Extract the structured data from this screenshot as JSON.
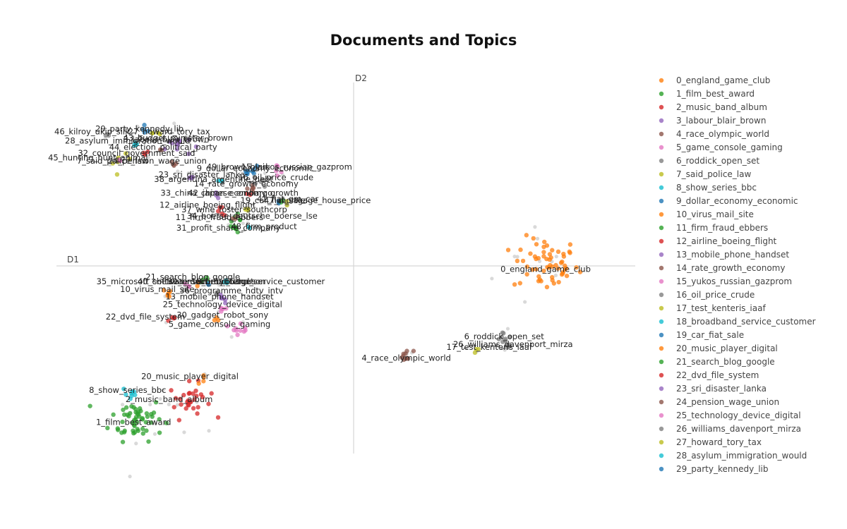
{
  "chart_data": {
    "type": "scatter",
    "title": "Documents and Topics",
    "x_axis_label": "D1",
    "y_axis_label": "D2",
    "grid": false,
    "legend_position": "right",
    "xlim": [
      -10,
      10
    ],
    "ylim": [
      -6,
      6
    ],
    "topics": [
      {
        "label": "0_england_game_club",
        "color": "#ff7f0e",
        "x": 6.5,
        "y": 0.05,
        "spread": 0.55,
        "n": 60,
        "show_label": true
      },
      {
        "label": "1_film_best_award",
        "color": "#2ca02c",
        "x": -7.3,
        "y": -5.0,
        "spread": 0.45,
        "n": 55,
        "show_label": true
      },
      {
        "label": "2_music_band_album",
        "color": "#d62728",
        "x": -5.5,
        "y": -4.4,
        "spread": 0.35,
        "n": 30,
        "show_label": true
      },
      {
        "label": "3_labour_blair_brown",
        "color": "#9467bd",
        "x": -5.9,
        "y": 3.95,
        "spread": 0.22,
        "n": 10,
        "show_label": true
      },
      {
        "label": "4_race_olympic_world",
        "color": "#8c564b",
        "x": 1.8,
        "y": -2.95,
        "spread": 0.12,
        "n": 10,
        "show_label": true
      },
      {
        "label": "5_game_console_gaming",
        "color": "#e377c2",
        "x": -3.8,
        "y": -2.0,
        "spread": 0.15,
        "n": 10,
        "show_label": true
      },
      {
        "label": "6_roddick_open_set",
        "color": "#7f7f7f",
        "x": 5.1,
        "y": -2.35,
        "spread": 0.12,
        "n": 8,
        "show_label": true
      },
      {
        "label": "7_said_police_law",
        "color": "#bcbd22",
        "x": -7.8,
        "y": 3.4,
        "spread": 0.15,
        "n": 6,
        "show_label": true
      },
      {
        "label": "8_show_series_bbc",
        "color": "#17becf",
        "x": -7.5,
        "y": -4.2,
        "spread": 0.15,
        "n": 8,
        "show_label": true
      },
      {
        "label": "9_dollar_economy_economic",
        "color": "#1f77b4",
        "x": -3.5,
        "y": 3.05,
        "spread": 0.12,
        "n": 6,
        "show_label": true
      },
      {
        "label": "10_virus_mail_site",
        "color": "#ff7f0e",
        "x": -6.2,
        "y": -0.9,
        "spread": 0.1,
        "n": 6,
        "show_label": true
      },
      {
        "label": "11_firm_fraud_ebbers",
        "color": "#2ca02c",
        "x": -4.0,
        "y": 1.5,
        "spread": 0.12,
        "n": 8,
        "show_label": true
      },
      {
        "label": "12_airline_boeing_flight",
        "color": "#d62728",
        "x": -4.4,
        "y": 1.8,
        "spread": 0.1,
        "n": 5,
        "show_label": true
      },
      {
        "label": "13_mobile_phone_handset",
        "color": "#9467bd",
        "x": -4.4,
        "y": -1.1,
        "spread": 0.1,
        "n": 6,
        "show_label": true
      },
      {
        "label": "14_rate_growth_economy",
        "color": "#8c564b",
        "x": -3.4,
        "y": 2.55,
        "spread": 0.1,
        "n": 6,
        "show_label": true
      },
      {
        "label": "15_yukos_russian_gazprom",
        "color": "#e377c2",
        "x": -2.6,
        "y": 3.1,
        "spread": 0.1,
        "n": 5,
        "show_label": true
      },
      {
        "label": "16_oil_price_crude",
        "color": "#7f7f7f",
        "x": -3.2,
        "y": 2.8,
        "spread": 0.1,
        "n": 5,
        "show_label": true
      },
      {
        "label": "17_test_kenteris_iaaf",
        "color": "#bcbd22",
        "x": 4.2,
        "y": -2.75,
        "spread": 0.06,
        "n": 3,
        "show_label": true
      },
      {
        "label": "18_broadband_service_customer",
        "color": "#17becf",
        "x": -4.3,
        "y": -0.6,
        "spread": 0.08,
        "n": 4,
        "show_label": true
      },
      {
        "label": "19_car_fiat_sale",
        "color": "#1f77b4",
        "x": -2.5,
        "y": 2.05,
        "spread": 0.06,
        "n": 3,
        "show_label": true
      },
      {
        "label": "20_music_player_digital",
        "color": "#ff7f0e",
        "x": -5.0,
        "y": -3.7,
        "spread": 0.1,
        "n": 4,
        "show_label": true
      },
      {
        "label": "21_search_blog_google",
        "color": "#2ca02c",
        "x": -5.0,
        "y": -0.45,
        "spread": 0.08,
        "n": 4,
        "show_label": true
      },
      {
        "label": "22_dvd_file_system",
        "color": "#d62728",
        "x": -6.1,
        "y": -1.75,
        "spread": 0.08,
        "n": 4,
        "show_label": true
      },
      {
        "label": "23_sri_disaster_lanka",
        "color": "#9467bd",
        "x": -5.5,
        "y": 2.9,
        "spread": 0.08,
        "n": 4,
        "show_label": true
      },
      {
        "label": "24_pension_wage_union",
        "color": "#8c564b",
        "x": -6.0,
        "y": 3.35,
        "spread": 0.08,
        "n": 4,
        "show_label": true
      },
      {
        "label": "25_technology_device_digital",
        "color": "#e377c2",
        "x": -4.4,
        "y": -1.4,
        "spread": 0.1,
        "n": 5,
        "show_label": true
      },
      {
        "label": "26_williams_davenport_mirza",
        "color": "#7f7f7f",
        "x": 5.2,
        "y": -2.6,
        "spread": 0.08,
        "n": 4,
        "show_label": true
      },
      {
        "label": "27_howard_tory_tax",
        "color": "#bcbd22",
        "x": -6.6,
        "y": 4.35,
        "spread": 0.08,
        "n": 4,
        "show_label": true
      },
      {
        "label": "28_asylum_immigration_would",
        "color": "#17becf",
        "x": -7.3,
        "y": 4.0,
        "spread": 0.08,
        "n": 4,
        "show_label": true
      },
      {
        "label": "29_party_kennedy_lib",
        "color": "#1f77b4",
        "x": -7.0,
        "y": 4.4,
        "spread": 0.08,
        "n": 4,
        "show_label": true
      },
      {
        "label": "30_gadget_robot_sony",
        "color": "#ff7f0e",
        "x": -4.6,
        "y": -1.75,
        "spread": 0.06,
        "n": 3,
        "show_label": true
      },
      {
        "label": "31_profit_share_company",
        "color": "#2ca02c",
        "x": -3.9,
        "y": 1.2,
        "spread": 0.08,
        "n": 4,
        "show_label": true
      },
      {
        "label": "32_council_government_said",
        "color": "#d62728",
        "x": -7.0,
        "y": 3.65,
        "spread": 0.08,
        "n": 3,
        "show_label": true
      },
      {
        "label": "33_china_chinese_embargo",
        "color": "#9467bd",
        "x": -4.6,
        "y": 2.3,
        "spread": 0.06,
        "n": 3,
        "show_label": true
      },
      {
        "label": "34_boerse_deutsche_boerse_lse",
        "color": "#8c564b",
        "x": -4.0,
        "y": 1.55,
        "spread": 0.06,
        "n": 3,
        "show_label": true
      },
      {
        "label": "35_microsoft_software_security",
        "color": "#e377c2",
        "x": -5.6,
        "y": -0.65,
        "spread": 0.06,
        "n": 3,
        "show_label": true
      },
      {
        "label": "36_programme_hdtv_intv",
        "color": "#7f7f7f",
        "x": -4.6,
        "y": -0.9,
        "spread": 0.06,
        "n": 3,
        "show_label": true
      },
      {
        "label": "37_wine_foster_southcorp",
        "color": "#bcbd22",
        "x": -3.6,
        "y": 1.8,
        "spread": 0.06,
        "n": 3,
        "show_label": true
      },
      {
        "label": "38_argentina_argentine_debt",
        "color": "#17becf",
        "x": -4.5,
        "y": 2.75,
        "spread": 0.06,
        "n": 3,
        "show_label": true
      },
      {
        "label": "39_brown_eu_budget",
        "color": "#1f77b4",
        "x": -4.9,
        "y": -0.6,
        "spread": 0.05,
        "n": 2,
        "show_label": true
      },
      {
        "label": "40_chelsea_mourinho_ferguson",
        "color": "#ff7f0e",
        "x": -5.2,
        "y": -0.6,
        "spread": 0.05,
        "n": 2,
        "show_label": true
      },
      {
        "label": "41_fiat_gm_car",
        "color": "#2ca02c",
        "x": -2.4,
        "y": 2.1,
        "spread": 0.05,
        "n": 2,
        "show_label": true
      },
      {
        "label": "42_japan_economy_growth",
        "color": "#d62728",
        "x": -3.5,
        "y": 2.3,
        "spread": 0.05,
        "n": 2,
        "show_label": true
      },
      {
        "label": "43_budget_minister_brown",
        "color": "#9467bd",
        "x": -6.1,
        "y": 4.05,
        "spread": 0.05,
        "n": 2,
        "show_label": true
      },
      {
        "label": "44_election_political_party",
        "color": "#8c564b",
        "x": -6.5,
        "y": 3.8,
        "spread": 0.05,
        "n": 2,
        "show_label": true
      },
      {
        "label": "45_hunting_hunt_animal",
        "color": "#e377c2",
        "x": -7.9,
        "y": 3.45,
        "spread": 0.05,
        "n": 2,
        "show_label": true
      },
      {
        "label": "46_kilroy_ukip_silk",
        "color": "#7f7f7f",
        "x": -8.3,
        "y": 4.25,
        "spread": 0.05,
        "n": 2,
        "show_label": true
      },
      {
        "label": "47_mortgage_house_price",
        "color": "#bcbd22",
        "x": -2.3,
        "y": 2.05,
        "spread": 0.05,
        "n": 2,
        "show_label": true
      },
      {
        "label": "48_firm_product",
        "color": "#17becf",
        "x": -3.5,
        "y": 1.2,
        "spread": 0.05,
        "n": 2,
        "show_label": true
      },
      {
        "label": "49_brown_blair",
        "color": "#1f77b4",
        "x": -3.2,
        "y": 3.2,
        "spread": 0.05,
        "n": 2,
        "show_label": true
      }
    ],
    "text_annotations": [
      {
        "text": "0_england_game_club",
        "x": 6.5,
        "y": -0.2
      },
      {
        "text": "1_film_best_award",
        "x": -7.4,
        "y": -5.2
      },
      {
        "text": "2_music_band_album",
        "x": -6.2,
        "y": -4.45
      },
      {
        "text": "3_labour_blair_brown",
        "x": -6.3,
        "y": 4.05
      },
      {
        "text": "4_race_olympic_world",
        "x": 1.8,
        "y": -3.1
      },
      {
        "text": "5_game_console_gaming",
        "x": -4.5,
        "y": -2.0
      },
      {
        "text": "6_roddick_open_set",
        "x": 5.1,
        "y": -2.4
      },
      {
        "text": "7_said_police_law",
        "x": -8.1,
        "y": 3.35
      },
      {
        "text": "8_show_series_bbc",
        "x": -7.6,
        "y": -4.15
      },
      {
        "text": "9_dollar_economy_economic",
        "x": -3.3,
        "y": 3.1
      },
      {
        "text": "10_virus_mail_site",
        "x": -6.6,
        "y": -0.85
      },
      {
        "text": "11_firm_fraud_ebbers",
        "x": -4.5,
        "y": 1.5
      },
      {
        "text": "12_airline_boeing_flight",
        "x": -4.9,
        "y": 1.9
      },
      {
        "text": "13_mobile_phone_handset",
        "x": -4.5,
        "y": -1.1
      },
      {
        "text": "14_rate_growth_economy",
        "x": -3.6,
        "y": 2.6
      },
      {
        "text": "15_yukos_russian_gazprom",
        "x": -1.9,
        "y": 3.15
      },
      {
        "text": "16_oil_price_crude",
        "x": -2.6,
        "y": 2.8
      },
      {
        "text": "17_test_kenteris_iaaf",
        "x": 4.6,
        "y": -2.75
      },
      {
        "text": "18_broadband_service_customer",
        "x": -3.2,
        "y": -0.6
      },
      {
        "text": "19_car_fiat_sale",
        "x": -2.7,
        "y": 2.05
      },
      {
        "text": "20_music_player_digital",
        "x": -5.5,
        "y": -3.7
      },
      {
        "text": "21_search_blog_google",
        "x": -5.4,
        "y": -0.45
      },
      {
        "text": "22_dvd_file_system",
        "x": -7.0,
        "y": -1.75
      },
      {
        "text": "23_sri_disaster_lanka",
        "x": -5.1,
        "y": 2.9
      },
      {
        "text": "24_pension_wage_union",
        "x": -6.6,
        "y": 3.35
      },
      {
        "text": "25_technology_device_digital",
        "x": -4.4,
        "y": -1.35
      },
      {
        "text": "26_williams_davenport_mirza",
        "x": 5.4,
        "y": -2.65
      },
      {
        "text": "27_howard_tory_tax",
        "x": -6.2,
        "y": 4.3
      },
      {
        "text": "28_asylum_immigration_would",
        "x": -7.6,
        "y": 4.0
      },
      {
        "text": "29_party_kennedy_lib",
        "x": -7.2,
        "y": 4.4
      },
      {
        "text": "30_gadget_robot_sony",
        "x": -4.4,
        "y": -1.7
      },
      {
        "text": "31_profit_share_company",
        "x": -4.2,
        "y": 1.15
      },
      {
        "text": "32_council_government_said",
        "x": -7.3,
        "y": 3.6
      },
      {
        "text": "33_china_chinese_embargo",
        "x": -4.6,
        "y": 2.3
      },
      {
        "text": "34_boerse_deutsche_boerse_lse",
        "x": -3.4,
        "y": 1.55
      },
      {
        "text": "35_microsoft_software_security",
        "x": -6.5,
        "y": -0.6
      },
      {
        "text": "36_programme_hdtv_intv",
        "x": -4.1,
        "y": -0.9
      },
      {
        "text": "37_wine_foster_southcorp",
        "x": -4.0,
        "y": 1.75
      },
      {
        "text": "38_argentina_argentine_debt",
        "x": -4.7,
        "y": 2.75
      },
      {
        "text": "39_brown_eu_budget",
        "x": -4.8,
        "y": -0.6
      },
      {
        "text": "40_chelsea_mourinho_ferguson",
        "x": -5.1,
        "y": -0.6
      },
      {
        "text": "41_fiat_gm_car",
        "x": -2.2,
        "y": 2.1
      },
      {
        "text": "42_japan_economy_growth",
        "x": -3.7,
        "y": 2.3
      },
      {
        "text": "43_budget_minister_brown",
        "x": -5.9,
        "y": 4.1
      },
      {
        "text": "44_election_political_party",
        "x": -6.4,
        "y": 3.8
      },
      {
        "text": "45_hunting_hunt_animal",
        "x": -8.6,
        "y": 3.45
      },
      {
        "text": "46_kilroy_ukip_silk",
        "x": -8.8,
        "y": 4.3
      },
      {
        "text": "47_mortgage_house_price",
        "x": -1.2,
        "y": 2.05
      },
      {
        "text": "48_firm_product",
        "x": -3.0,
        "y": 1.2
      },
      {
        "text": "49_brown_blair",
        "x": -3.9,
        "y": 3.15
      }
    ],
    "background_points_color": "#cfcfcf"
  },
  "legend": {
    "items": [
      {
        "label": "0_england_game_club",
        "color": "#ff7f0e"
      },
      {
        "label": "1_film_best_award",
        "color": "#2ca02c"
      },
      {
        "label": "2_music_band_album",
        "color": "#d62728"
      },
      {
        "label": "3_labour_blair_brown",
        "color": "#9467bd"
      },
      {
        "label": "4_race_olympic_world",
        "color": "#8c564b"
      },
      {
        "label": "5_game_console_gaming",
        "color": "#e377c2"
      },
      {
        "label": "6_roddick_open_set",
        "color": "#7f7f7f"
      },
      {
        "label": "7_said_police_law",
        "color": "#bcbd22"
      },
      {
        "label": "8_show_series_bbc",
        "color": "#17becf"
      },
      {
        "label": "9_dollar_economy_economic",
        "color": "#1f77b4"
      },
      {
        "label": "10_virus_mail_site",
        "color": "#ff7f0e"
      },
      {
        "label": "11_firm_fraud_ebbers",
        "color": "#2ca02c"
      },
      {
        "label": "12_airline_boeing_flight",
        "color": "#d62728"
      },
      {
        "label": "13_mobile_phone_handset",
        "color": "#9467bd"
      },
      {
        "label": "14_rate_growth_economy",
        "color": "#8c564b"
      },
      {
        "label": "15_yukos_russian_gazprom",
        "color": "#e377c2"
      },
      {
        "label": "16_oil_price_crude",
        "color": "#7f7f7f"
      },
      {
        "label": "17_test_kenteris_iaaf",
        "color": "#bcbd22"
      },
      {
        "label": "18_broadband_service_customer",
        "color": "#17becf"
      },
      {
        "label": "19_car_fiat_sale",
        "color": "#1f77b4"
      },
      {
        "label": "20_music_player_digital",
        "color": "#ff7f0e"
      },
      {
        "label": "21_search_blog_google",
        "color": "#2ca02c"
      },
      {
        "label": "22_dvd_file_system",
        "color": "#d62728"
      },
      {
        "label": "23_sri_disaster_lanka",
        "color": "#9467bd"
      },
      {
        "label": "24_pension_wage_union",
        "color": "#8c564b"
      },
      {
        "label": "25_technology_device_digital",
        "color": "#e377c2"
      },
      {
        "label": "26_williams_davenport_mirza",
        "color": "#7f7f7f"
      },
      {
        "label": "27_howard_tory_tax",
        "color": "#bcbd22"
      },
      {
        "label": "28_asylum_immigration_would",
        "color": "#17becf"
      },
      {
        "label": "29_party_kennedy_lib",
        "color": "#1f77b4"
      }
    ]
  }
}
